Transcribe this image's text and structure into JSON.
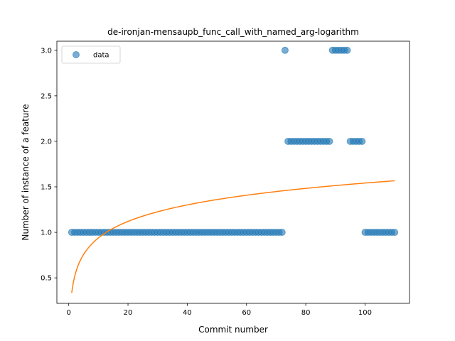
{
  "chart_data": {
    "type": "scatter",
    "title": "de-ironjan-mensaupb_func_call_with_named_arg-logarithm",
    "xlabel": "Commit number",
    "ylabel": "Number of instance of a feature",
    "xlim": [
      -4,
      115
    ],
    "ylim": [
      0.22,
      3.1
    ],
    "xticks": [
      0,
      20,
      40,
      60,
      80,
      100
    ],
    "yticks": [
      0.5,
      1.0,
      1.5,
      2.0,
      2.5,
      3.0
    ],
    "xtick_labels": [
      "0",
      "20",
      "40",
      "60",
      "80",
      "100"
    ],
    "ytick_labels": [
      "0.5",
      "1.0",
      "1.5",
      "2.0",
      "2.5",
      "3.0"
    ],
    "legend": {
      "position": "top-left",
      "entries": [
        {
          "label": "data"
        }
      ]
    },
    "grid": false,
    "colors": {
      "scatter": "#1f77b4",
      "fit": "#ff7f0e"
    },
    "series": [
      {
        "name": "data",
        "kind": "scatter",
        "segments": [
          {
            "x_from": 1,
            "x_to": 72,
            "y": 1
          },
          {
            "x_from": 73,
            "x_to": 73,
            "y": 3
          },
          {
            "x_from": 74,
            "x_to": 88,
            "y": 2
          },
          {
            "x_from": 89,
            "x_to": 94,
            "y": 3
          },
          {
            "x_from": 95,
            "x_to": 99,
            "y": 2
          },
          {
            "x_from": 100,
            "x_to": 110,
            "y": 1
          }
        ]
      },
      {
        "kind": "line",
        "model": "logarithmic",
        "a": 0.335,
        "b": 0.262,
        "x_range": [
          1,
          110
        ]
      }
    ]
  }
}
